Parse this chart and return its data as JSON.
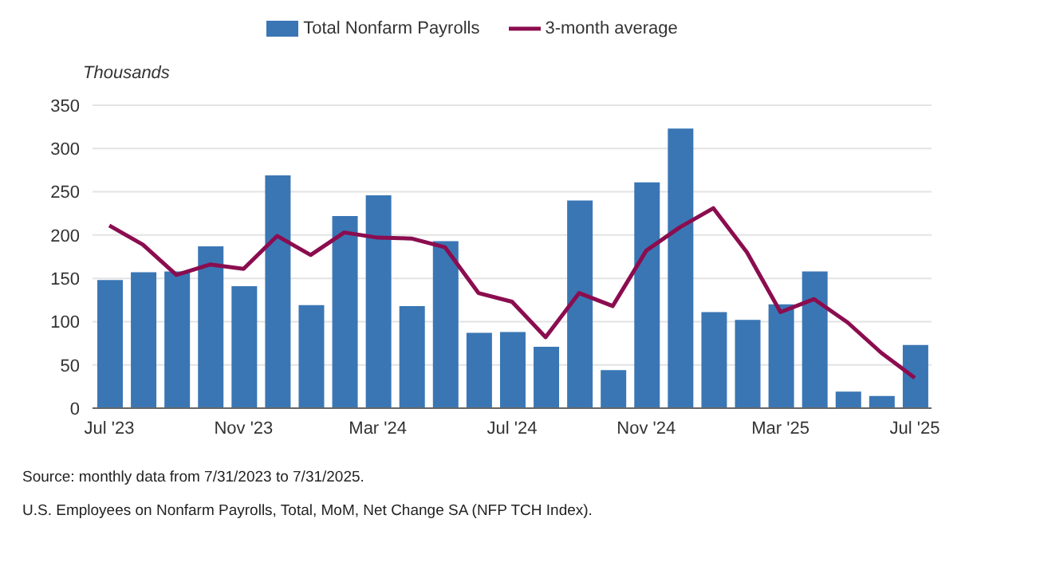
{
  "chart_data": {
    "type": "bar",
    "ylabel": "Thousands",
    "categories": [
      "Jul '23",
      null,
      null,
      null,
      "Nov '23",
      null,
      null,
      null,
      "Mar '24",
      null,
      null,
      null,
      "Jul '24",
      null,
      null,
      null,
      "Nov '24",
      null,
      null,
      null,
      "Mar '25",
      null,
      null,
      null,
      "Jul '25"
    ],
    "series": [
      {
        "name": "Total Nonfarm Payrolls",
        "color": "#3a76b4",
        "values": [
          148,
          157,
          158,
          187,
          141,
          269,
          119,
          222,
          246,
          118,
          193,
          87,
          88,
          71,
          240,
          44,
          261,
          323,
          111,
          102,
          120,
          158,
          19,
          14,
          73
        ]
      },
      {
        "name": "3-month average",
        "type": "line",
        "color": "#8b0d4f",
        "values": [
          211,
          189,
          154,
          166,
          161,
          199,
          177,
          203,
          197,
          196,
          186,
          133,
          123,
          82,
          133,
          118,
          182,
          209,
          231,
          180,
          111,
          126,
          99,
          64,
          35
        ]
      }
    ],
    "ylim": [
      0,
      350
    ],
    "yticks": [
      0,
      50,
      100,
      150,
      200,
      250,
      300,
      350
    ],
    "grid": "y",
    "legend": "top",
    "marker": "none",
    "annotations": [
      "Source: monthly data from 7/31/2023 to 7/31/2025.",
      "U.S. Employees on Nonfarm Payrolls, Total, MoM, Net Change SA (NFP TCH Index)."
    ]
  }
}
